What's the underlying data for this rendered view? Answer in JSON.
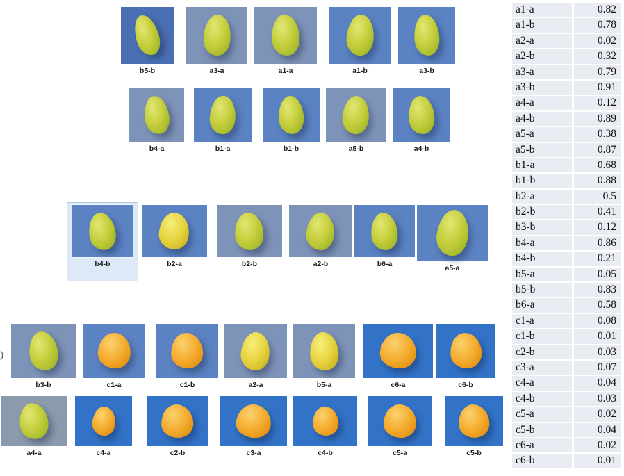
{
  "gallery": {
    "rows": [
      {
        "items": [
          {
            "label": "b5-b",
            "bg": "meddark",
            "fruit": "green"
          },
          {
            "label": "a3-a",
            "bg": "light",
            "fruit": "green"
          },
          {
            "label": "a1-a",
            "bg": "light",
            "fruit": "green"
          },
          {
            "label": "a1-b",
            "bg": "med",
            "fruit": "green"
          },
          {
            "label": "a3-b",
            "bg": "med",
            "fruit": "green"
          }
        ]
      },
      {
        "items": [
          {
            "label": "b4-a",
            "bg": "light",
            "fruit": "green"
          },
          {
            "label": "b1-a",
            "bg": "med",
            "fruit": "green"
          },
          {
            "label": "b1-b",
            "bg": "med",
            "fruit": "green"
          },
          {
            "label": "a5-b",
            "bg": "light",
            "fruit": "green"
          },
          {
            "label": "a4-b",
            "bg": "med",
            "fruit": "green"
          }
        ]
      },
      {
        "items": [
          {
            "label": "b4-b",
            "bg": "med",
            "fruit": "green",
            "cls": "selected"
          },
          {
            "label": "b2-a",
            "bg": "med",
            "fruit": "yellow"
          },
          {
            "label": "b2-b",
            "bg": "light",
            "fruit": "green"
          },
          {
            "label": "a2-b",
            "bg": "light",
            "fruit": "green"
          },
          {
            "label": "b6-a",
            "bg": "med",
            "fruit": "green"
          },
          {
            "label": "a5-a",
            "bg": "med",
            "fruit": "green"
          }
        ]
      },
      {
        "items": [
          {
            "label": "b3-b",
            "bg": "light",
            "fruit": "green"
          },
          {
            "label": "c1-a",
            "bg": "med",
            "fruit": "orange"
          },
          {
            "label": "c1-b",
            "bg": "med",
            "fruit": "orange"
          },
          {
            "label": "a2-a",
            "bg": "light",
            "fruit": "yellow"
          },
          {
            "label": "b5-a",
            "bg": "light",
            "fruit": "yellow"
          },
          {
            "label": "c6-a",
            "bg": "strong",
            "fruit": "orange"
          },
          {
            "label": "c6-b",
            "bg": "strong",
            "fruit": "orange"
          }
        ]
      },
      {
        "items": [
          {
            "label": "a4-a",
            "bg": "gray",
            "fruit": "green"
          },
          {
            "label": "c4-a",
            "bg": "strong",
            "fruit": "orange",
            "cls": "small"
          },
          {
            "label": "c2-b",
            "bg": "strong",
            "fruit": "orange"
          },
          {
            "label": "c3-a",
            "bg": "strong",
            "fruit": "orange"
          },
          {
            "label": "c4-b",
            "bg": "strong",
            "fruit": "orange",
            "cls": "small"
          },
          {
            "label": "c5-a",
            "bg": "strong",
            "fruit": "orange"
          },
          {
            "label": "c5-b",
            "bg": "strong",
            "fruit": "orange"
          }
        ]
      }
    ]
  },
  "table": {
    "rows": [
      {
        "label": "a1-a",
        "value": "0.82"
      },
      {
        "label": "a1-b",
        "value": "0.78"
      },
      {
        "label": "a2-a",
        "value": "0.02"
      },
      {
        "label": "a2-b",
        "value": "0.32"
      },
      {
        "label": "a3-a",
        "value": "0.79"
      },
      {
        "label": "a3-b",
        "value": "0.91"
      },
      {
        "label": "a4-a",
        "value": "0.12"
      },
      {
        "label": "a4-b",
        "value": "0.89"
      },
      {
        "label": "a5-a",
        "value": "0.38"
      },
      {
        "label": "a5-b",
        "value": "0.87"
      },
      {
        "label": "b1-a",
        "value": "0.68"
      },
      {
        "label": "b1-b",
        "value": "0.88"
      },
      {
        "label": "b2-a",
        "value": "0.5"
      },
      {
        "label": "b2-b",
        "value": "0.41"
      },
      {
        "label": "b3-b",
        "value": "0.12"
      },
      {
        "label": "b4-a",
        "value": "0.86"
      },
      {
        "label": "b4-b",
        "value": "0.21"
      },
      {
        "label": "b5-a",
        "value": "0.05"
      },
      {
        "label": "b5-b",
        "value": "0.83"
      },
      {
        "label": "b6-a",
        "value": "0.58"
      },
      {
        "label": "c1-a",
        "value": "0.08"
      },
      {
        "label": "c1-b",
        "value": "0.01"
      },
      {
        "label": "c2-b",
        "value": "0.03"
      },
      {
        "label": "c3-a",
        "value": "0.07"
      },
      {
        "label": "c4-a",
        "value": "0.04"
      },
      {
        "label": "c4-b",
        "value": "0.03"
      },
      {
        "label": "c5-a",
        "value": "0.02"
      },
      {
        "label": "c5-b",
        "value": "0.04"
      },
      {
        "label": "c6-a",
        "value": "0.02"
      },
      {
        "label": "c6-b",
        "value": "0.01"
      }
    ]
  },
  "stray_mark": ")",
  "colors": {
    "bg-strong": "#3273c8",
    "bg-med": "#5b82c2",
    "bg-light": "#7e93b8",
    "bg-gray": "#8b9aad",
    "bg-meddark": "#4a6fb2",
    "table-bg": "#e9ecf3",
    "select-bg": "#dde9f6",
    "select-border": "#aecbea",
    "mango-green": "#c6cf3e",
    "mango-orange": "#f4ab2e",
    "mango-yellow": "#e6d33c"
  }
}
